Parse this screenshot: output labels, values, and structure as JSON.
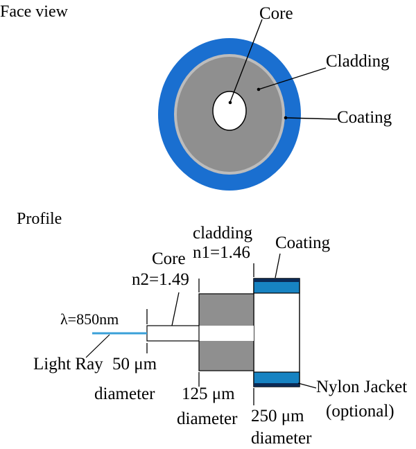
{
  "face_view": {
    "title": "Face view",
    "labels": {
      "core": "Core",
      "cladding": "Cladding",
      "coating": "Coating"
    }
  },
  "profile": {
    "title": "Profile",
    "wavelength": "λ=850nm",
    "light_ray": "Light Ray",
    "core": {
      "name": "Core",
      "index": "n2=1.49",
      "size": "50 μm",
      "size_caption": "diameter"
    },
    "cladding": {
      "name": "cladding",
      "index": "n1=1.46",
      "size": "125 μm",
      "size_caption": "diameter"
    },
    "coating": {
      "name": "Coating",
      "size": "250 μm",
      "size_caption": "diameter"
    },
    "jacket": {
      "name": "Nylon Jacket",
      "note": "(optional)"
    }
  },
  "colors": {
    "coating": "#1a6fd0",
    "cladding": "#8f8f8f",
    "cladding_ring": "#bcbcbc",
    "coating_profile": "#1783c2",
    "jacket": "#0b2a55",
    "light_ray": "#3aa0d8"
  }
}
